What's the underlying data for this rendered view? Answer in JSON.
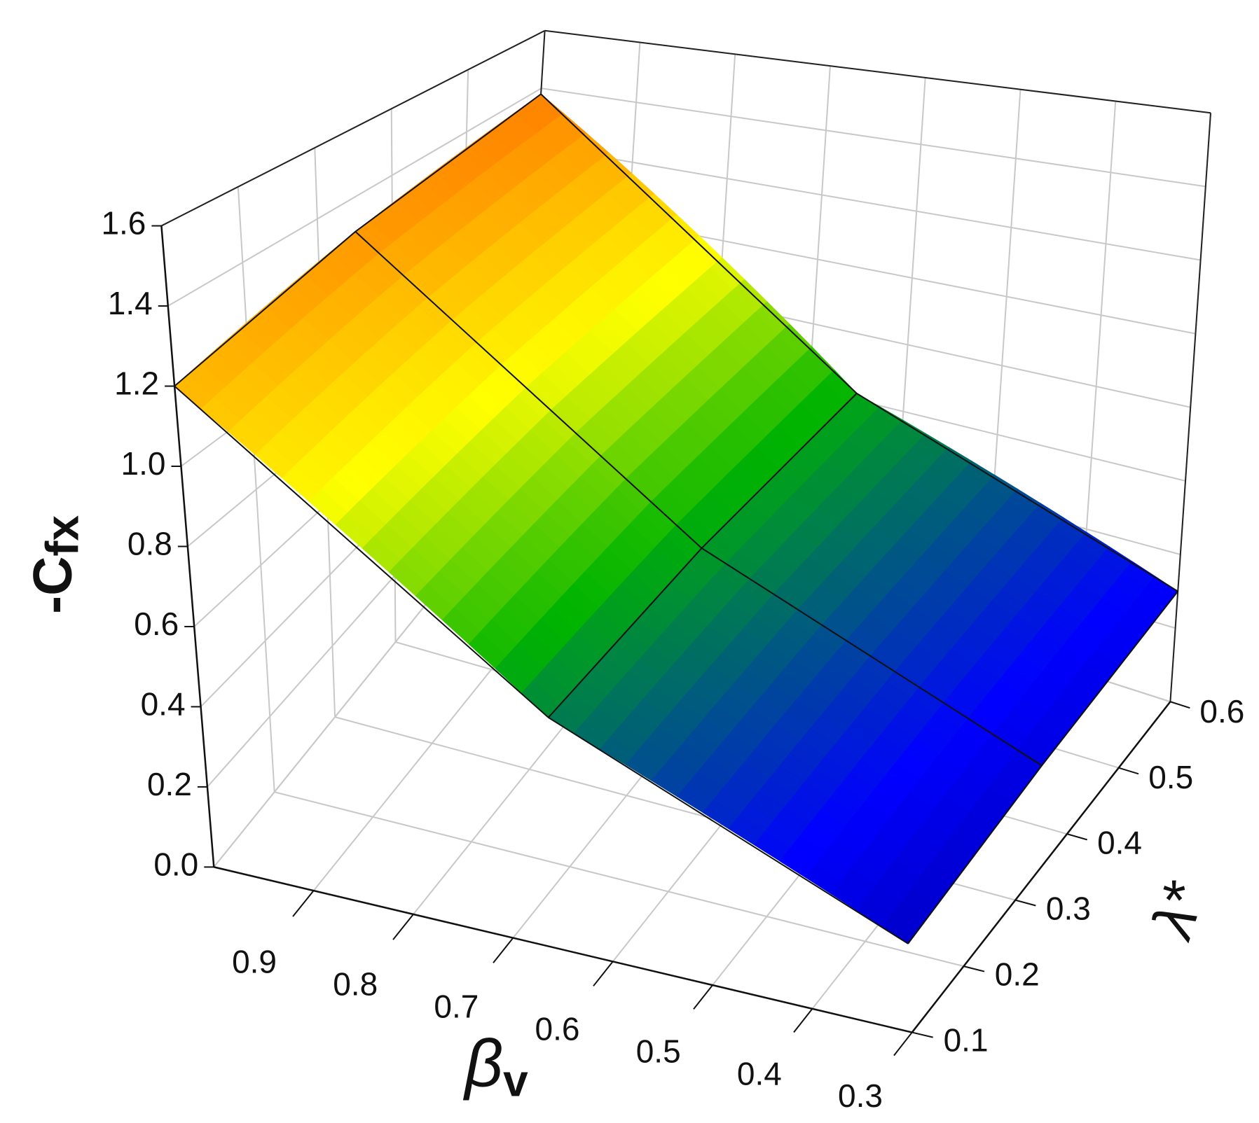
{
  "chart_data": {
    "type": "surface3d",
    "zlabel": "-C",
    "zlabel_subscript": "fx",
    "xlabel": "β",
    "xlabel_subscript": "v",
    "ylabel": "λ*",
    "x": [
      1.0,
      0.65,
      0.3
    ],
    "y": [
      0.1,
      0.35,
      0.6
    ],
    "z": [
      [
        1.2,
        0.55,
        0.2
      ],
      [
        1.3,
        0.6,
        0.25
      ],
      [
        1.38,
        0.62,
        0.3
      ]
    ],
    "xlim": [
      1.0,
      0.3
    ],
    "xticks": [
      0.9,
      0.8,
      0.7,
      0.6,
      0.5,
      0.4,
      0.3
    ],
    "ylim": [
      0.1,
      0.6
    ],
    "yticks": [
      0.1,
      0.2,
      0.3,
      0.4,
      0.5,
      0.6
    ],
    "zlim": [
      0,
      1.6
    ],
    "zticks": [
      {
        "value": 0,
        "label": "0.0"
      },
      0.2,
      0.4,
      0.6,
      0.8,
      {
        "value": 1,
        "label": "1.0"
      },
      1.2,
      1.4,
      1.6
    ],
    "colormap": [
      "#00006e",
      "#0000ff",
      "#00b400",
      "#ffff00",
      "#ff9900",
      "#ff4000"
    ],
    "grid": true
  }
}
